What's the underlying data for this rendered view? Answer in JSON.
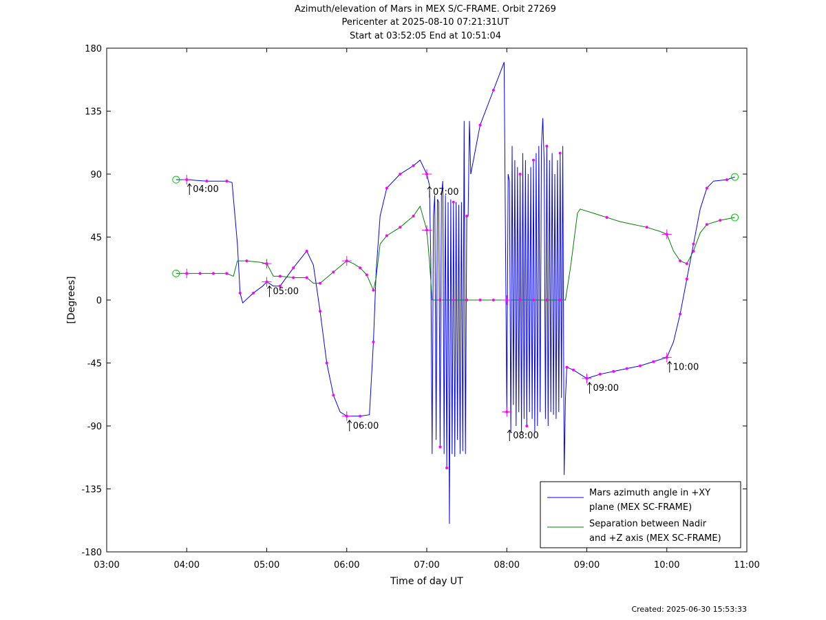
{
  "chart_data": {
    "type": "line",
    "title_lines": [
      "Azimuth/elevation of Mars in MEX S/C-FRAME.  Orbit 27269",
      "Pericenter at 2025-08-10 07:21:31UT",
      "Start at 03:52:05 End at 10:51:04"
    ],
    "xlabel": "Time of day UT",
    "ylabel": "[Degrees]",
    "xlim": [
      "03:00",
      "11:00"
    ],
    "ylim": [
      -180,
      180
    ],
    "x_ticks": [
      "03:00",
      "04:00",
      "05:00",
      "06:00",
      "07:00",
      "08:00",
      "09:00",
      "10:00",
      "11:00"
    ],
    "y_ticks": [
      "180",
      "135",
      "90",
      "45",
      "0",
      "-45",
      "-90",
      "-135",
      "-180"
    ],
    "legend_position": "bottom-right",
    "series": [
      {
        "name": "Mars azimuth angle in +XY plane (MEX SC-FRAME)",
        "legend_lines": [
          "Mars azimuth angle in +XY",
          "plane (MEX SC-FRAME)"
        ],
        "color": "#0000ff",
        "points": [
          [
            "03:52",
            86
          ],
          [
            "04:00",
            86
          ],
          [
            "04:15",
            85
          ],
          [
            "04:30",
            85
          ],
          [
            "04:34",
            84
          ],
          [
            "04:38",
            40
          ],
          [
            "04:40",
            5
          ],
          [
            "04:42",
            -2
          ],
          [
            "04:50",
            5
          ],
          [
            "04:57",
            10
          ],
          [
            "05:00",
            13
          ],
          [
            "05:05",
            10
          ],
          [
            "05:10",
            10
          ],
          [
            "05:20",
            23
          ],
          [
            "05:30",
            35
          ],
          [
            "05:35",
            25
          ],
          [
            "05:40",
            -8
          ],
          [
            "05:45",
            -45
          ],
          [
            "05:50",
            -68
          ],
          [
            "05:55",
            -80
          ],
          [
            "06:00",
            -83
          ],
          [
            "06:10",
            -83
          ],
          [
            "06:17",
            -82
          ],
          [
            "06:20",
            -30
          ],
          [
            "06:22",
            20
          ],
          [
            "06:25",
            60
          ],
          [
            "06:30",
            80
          ],
          [
            "06:40",
            90
          ],
          [
            "06:50",
            96
          ],
          [
            "06:55",
            100
          ],
          [
            "07:00",
            90
          ],
          [
            "07:02",
            82
          ],
          [
            "07:03",
            30
          ],
          [
            "07:04",
            -110
          ],
          [
            "07:05",
            60
          ],
          [
            "07:06",
            75
          ],
          [
            "07:07",
            -100
          ],
          [
            "07:08",
            72
          ],
          [
            "07:09",
            70
          ],
          [
            "07:10",
            -105
          ],
          [
            "07:11",
            74
          ],
          [
            "07:12",
            85
          ],
          [
            "07:13",
            -110
          ],
          [
            "07:14",
            75
          ],
          [
            "07:15",
            -120
          ],
          [
            "07:16",
            70
          ],
          [
            "07:17",
            -160
          ],
          [
            "07:18",
            72
          ],
          [
            "07:19",
            -110
          ],
          [
            "07:20",
            70
          ],
          [
            "07:21",
            -112
          ],
          [
            "07:22",
            70
          ],
          [
            "07:23",
            -100
          ],
          [
            "07:24",
            68
          ],
          [
            "07:25",
            -110
          ],
          [
            "07:26",
            70
          ],
          [
            "07:27",
            -108
          ],
          [
            "07:28",
            128
          ],
          [
            "07:29",
            -110
          ],
          [
            "07:30",
            60
          ],
          [
            "07:31",
            60
          ],
          [
            "07:32",
            128
          ],
          [
            "07:33",
            90
          ],
          [
            "07:40",
            125
          ],
          [
            "07:50",
            150
          ],
          [
            "07:58",
            170
          ],
          [
            "08:00",
            -80
          ],
          [
            "08:01",
            90
          ],
          [
            "08:02",
            85
          ],
          [
            "08:03",
            -95
          ],
          [
            "08:04",
            110
          ],
          [
            "08:05",
            -75
          ],
          [
            "08:06",
            100
          ],
          [
            "08:07",
            -90
          ],
          [
            "08:08",
            95
          ],
          [
            "08:09",
            -80
          ],
          [
            "08:10",
            90
          ],
          [
            "08:11",
            -95
          ],
          [
            "08:12",
            105
          ],
          [
            "08:13",
            -85
          ],
          [
            "08:14",
            100
          ],
          [
            "08:15",
            -90
          ],
          [
            "08:16",
            90
          ],
          [
            "08:17",
            -80
          ],
          [
            "08:18",
            95
          ],
          [
            "08:19",
            -85
          ],
          [
            "08:20",
            100
          ],
          [
            "08:21",
            -95
          ],
          [
            "08:22",
            105
          ],
          [
            "08:23",
            -90
          ],
          [
            "08:24",
            110
          ],
          [
            "08:25",
            -80
          ],
          [
            "08:26",
            110
          ],
          [
            "08:27",
            130
          ],
          [
            "08:28",
            100
          ],
          [
            "08:29",
            -85
          ],
          [
            "08:30",
            110
          ],
          [
            "08:31",
            -90
          ],
          [
            "08:32",
            100
          ],
          [
            "08:33",
            -80
          ],
          [
            "08:34",
            105
          ],
          [
            "08:35",
            -82
          ],
          [
            "08:36",
            90
          ],
          [
            "08:37",
            -85
          ],
          [
            "08:38",
            100
          ],
          [
            "08:39",
            -80
          ],
          [
            "08:40",
            105
          ],
          [
            "08:41",
            -70
          ],
          [
            "08:42",
            110
          ],
          [
            "08:43",
            -125
          ],
          [
            "08:44",
            -70
          ],
          [
            "08:45",
            -48
          ],
          [
            "08:50",
            -50
          ],
          [
            "09:00",
            -56
          ],
          [
            "09:10",
            -53
          ],
          [
            "09:20",
            -51
          ],
          [
            "09:30",
            -49
          ],
          [
            "09:40",
            -47
          ],
          [
            "09:50",
            -44
          ],
          [
            "10:00",
            -41
          ],
          [
            "10:05",
            -30
          ],
          [
            "10:10",
            -10
          ],
          [
            "10:15",
            15
          ],
          [
            "10:20",
            40
          ],
          [
            "10:25",
            65
          ],
          [
            "10:30",
            80
          ],
          [
            "10:35",
            85
          ],
          [
            "10:45",
            86
          ],
          [
            "10:51",
            88
          ]
        ]
      },
      {
        "name": "Separation between Nadir and +Z axis (MEX SC-FRAME)",
        "legend_lines": [
          "Separation between Nadir",
          "and +Z axis (MEX SC-FRAME)"
        ],
        "color": "#008000",
        "points": [
          [
            "03:52",
            19
          ],
          [
            "04:00",
            19
          ],
          [
            "04:10",
            19
          ],
          [
            "04:20",
            19
          ],
          [
            "04:30",
            19
          ],
          [
            "04:35",
            17
          ],
          [
            "04:38",
            28
          ],
          [
            "04:45",
            28
          ],
          [
            "04:55",
            27
          ],
          [
            "05:00",
            26
          ],
          [
            "05:05",
            17
          ],
          [
            "05:10",
            17
          ],
          [
            "05:20",
            16
          ],
          [
            "05:30",
            16
          ],
          [
            "05:35",
            12
          ],
          [
            "05:40",
            12
          ],
          [
            "05:50",
            20
          ],
          [
            "06:00",
            28
          ],
          [
            "06:05",
            26
          ],
          [
            "06:10",
            23
          ],
          [
            "06:15",
            18
          ],
          [
            "06:20",
            7
          ],
          [
            "06:22",
            16
          ],
          [
            "06:25",
            40
          ],
          [
            "06:30",
            46
          ],
          [
            "06:40",
            52
          ],
          [
            "06:50",
            60
          ],
          [
            "06:55",
            67
          ],
          [
            "07:00",
            50
          ],
          [
            "07:02",
            28
          ],
          [
            "07:04",
            0
          ],
          [
            "07:10",
            0
          ],
          [
            "07:20",
            0
          ],
          [
            "07:30",
            0
          ],
          [
            "07:40",
            0
          ],
          [
            "07:50",
            0
          ],
          [
            "08:00",
            0
          ],
          [
            "08:10",
            0
          ],
          [
            "08:20",
            0
          ],
          [
            "08:30",
            0
          ],
          [
            "08:40",
            0
          ],
          [
            "08:44",
            0
          ],
          [
            "08:48",
            25
          ],
          [
            "08:53",
            62
          ],
          [
            "08:55",
            65
          ],
          [
            "09:05",
            62
          ],
          [
            "09:15",
            59
          ],
          [
            "09:25",
            56
          ],
          [
            "09:35",
            54
          ],
          [
            "09:45",
            52
          ],
          [
            "09:55",
            49
          ],
          [
            "10:00",
            47
          ],
          [
            "10:05",
            35
          ],
          [
            "10:10",
            28
          ],
          [
            "10:15",
            26
          ],
          [
            "10:20",
            35
          ],
          [
            "10:25",
            48
          ],
          [
            "10:30",
            54
          ],
          [
            "10:40",
            57
          ],
          [
            "10:51",
            59
          ]
        ]
      }
    ],
    "time_labels": [
      {
        "text": "04:00",
        "x": "04:00",
        "y": 86
      },
      {
        "text": "05:00",
        "x": "05:00",
        "y": 13
      },
      {
        "text": "06:00",
        "x": "06:00",
        "y": -83
      },
      {
        "text": "07:00",
        "x": "07:00",
        "y": 84
      },
      {
        "text": "08:00",
        "x": "08:00",
        "y": -90
      },
      {
        "text": "09:00",
        "x": "09:00",
        "y": -56
      },
      {
        "text": "10:00",
        "x": "10:00",
        "y": -41
      }
    ],
    "footer": "Created: 2025-06-30 15:53:33"
  }
}
